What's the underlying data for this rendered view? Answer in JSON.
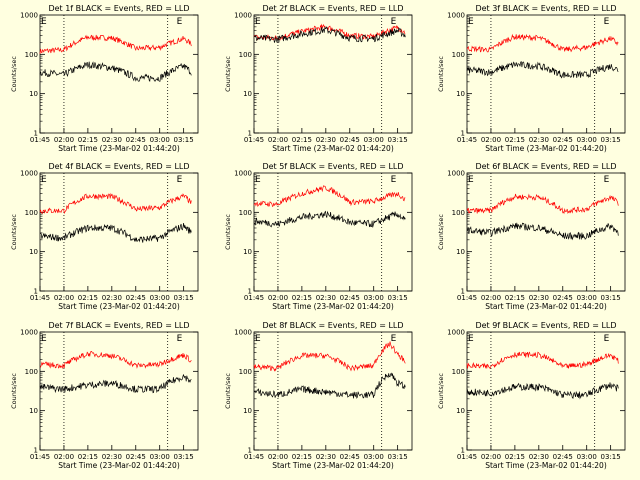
{
  "chart_data": {
    "type": "line",
    "y_scale": "log",
    "ylim": [
      1,
      1000
    ],
    "y_ticks": [
      "1",
      "10",
      "100",
      "1000"
    ],
    "x_ticks": [
      "01:45",
      "02:00",
      "02:15",
      "02:30",
      "02:45",
      "03:00",
      "03:15"
    ],
    "ylabel": "Counts/sec",
    "xlabel": "Start Time (23-Mar-02 01:44:20)",
    "marker_label": "E",
    "colors": {
      "events": "#000000",
      "lld": "#ff0000",
      "background": "#ffffe0"
    },
    "panels": [
      {
        "title": "Det 1f BLACK = Events, RED = LLD",
        "times": [
          "01:45",
          "02:00",
          "02:15",
          "02:30",
          "02:45",
          "03:00",
          "03:15",
          "03:20"
        ],
        "series": [
          {
            "key": "lld",
            "values": [
              120,
              130,
              270,
              260,
              140,
              150,
              250,
              180
            ]
          },
          {
            "key": "events",
            "values": [
              35,
              30,
              55,
              45,
              25,
              25,
              50,
              35
            ]
          }
        ]
      },
      {
        "title": "Det 2f BLACK = Events, RED = LLD",
        "times": [
          "01:45",
          "02:00",
          "02:15",
          "02:30",
          "02:45",
          "03:00",
          "03:15",
          "03:20"
        ],
        "series": [
          {
            "key": "lld",
            "values": [
              270,
              260,
              380,
              500,
              300,
              280,
              480,
              350
            ]
          },
          {
            "key": "events",
            "values": [
              260,
              240,
              330,
              420,
              260,
              250,
              400,
              300
            ]
          }
        ]
      },
      {
        "title": "Det 3f BLACK = Events, RED = LLD",
        "times": [
          "01:45",
          "02:00",
          "02:15",
          "02:30",
          "02:45",
          "03:00",
          "03:15",
          "03:20"
        ],
        "series": [
          {
            "key": "lld",
            "values": [
              140,
              130,
              280,
              260,
              130,
              150,
              250,
              180
            ]
          },
          {
            "key": "events",
            "values": [
              40,
              35,
              55,
              50,
              30,
              30,
              50,
              40
            ]
          }
        ]
      },
      {
        "title": "Det 4f BLACK = Events, RED = LLD",
        "times": [
          "01:45",
          "02:00",
          "02:15",
          "02:30",
          "02:45",
          "03:00",
          "03:15",
          "03:20"
        ],
        "series": [
          {
            "key": "lld",
            "values": [
              110,
              110,
              260,
              250,
              120,
              130,
              260,
              170
            ]
          },
          {
            "key": "events",
            "values": [
              25,
              22,
              40,
              40,
              20,
              22,
              45,
              30
            ]
          }
        ]
      },
      {
        "title": "Det 5f BLACK = Events, RED = LLD",
        "times": [
          "01:45",
          "02:00",
          "02:15",
          "02:30",
          "02:45",
          "03:00",
          "03:15",
          "03:20"
        ],
        "series": [
          {
            "key": "lld",
            "values": [
              170,
              160,
              300,
              420,
              180,
              190,
              300,
              200
            ]
          },
          {
            "key": "events",
            "values": [
              60,
              50,
              75,
              90,
              55,
              50,
              90,
              60
            ]
          }
        ]
      },
      {
        "title": "Det 6f BLACK = Events, RED = LLD",
        "times": [
          "01:45",
          "02:00",
          "02:15",
          "02:30",
          "02:45",
          "03:00",
          "03:15",
          "03:20"
        ],
        "series": [
          {
            "key": "lld",
            "values": [
              110,
              110,
              250,
              240,
              110,
              120,
              240,
              170
            ]
          },
          {
            "key": "events",
            "values": [
              35,
              30,
              45,
              40,
              25,
              25,
              45,
              30
            ]
          }
        ]
      },
      {
        "title": "Det 7f BLACK = Events, RED = LLD",
        "times": [
          "01:45",
          "02:00",
          "02:15",
          "02:30",
          "02:45",
          "03:00",
          "03:15",
          "03:20"
        ],
        "series": [
          {
            "key": "lld",
            "values": [
              150,
              140,
              280,
              250,
              140,
              150,
              260,
              180
            ]
          },
          {
            "key": "events",
            "values": [
              40,
              35,
              45,
              50,
              35,
              35,
              75,
              55
            ]
          }
        ]
      },
      {
        "title": "Det 8f BLACK = Events, RED = LLD",
        "times": [
          "01:45",
          "02:00",
          "02:15",
          "02:30",
          "02:45",
          "03:00",
          "03:10",
          "03:15",
          "03:20"
        ],
        "series": [
          {
            "key": "lld",
            "values": [
              130,
              120,
              250,
              250,
              120,
              140,
              500,
              260,
              180
            ]
          },
          {
            "key": "events",
            "values": [
              30,
              25,
              35,
              30,
              25,
              25,
              90,
              50,
              40
            ]
          }
        ]
      },
      {
        "title": "Det 9f BLACK = Events, RED = LLD",
        "times": [
          "01:45",
          "02:00",
          "02:15",
          "02:30",
          "02:45",
          "03:00",
          "03:15",
          "03:20"
        ],
        "series": [
          {
            "key": "lld",
            "values": [
              140,
              130,
              270,
              260,
              130,
              150,
              260,
              180
            ]
          },
          {
            "key": "events",
            "values": [
              30,
              28,
              40,
              40,
              25,
              25,
              45,
              35
            ]
          }
        ]
      }
    ]
  }
}
